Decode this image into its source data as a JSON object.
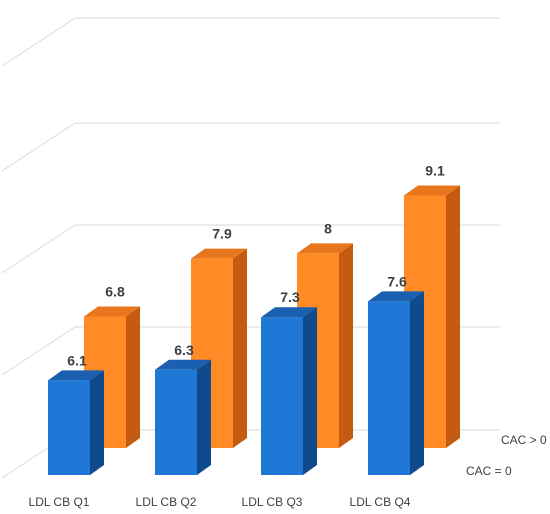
{
  "chart_data": {
    "type": "bar",
    "style": "3d-clustered-depth",
    "categories": [
      "LDL CB Q1",
      "LDL CB Q2",
      "LDL CB Q3",
      "LDL CB Q4"
    ],
    "series": [
      {
        "name": "CAC > 0",
        "values": [
          6.8,
          7.9,
          8,
          9.1
        ],
        "color": "#ff8a26",
        "side_color": "#c55a11",
        "top_color": "#e8761c"
      },
      {
        "name": "CAC = 0",
        "values": [
          6.1,
          6.3,
          7.3,
          7.6
        ],
        "color": "#1f77d6",
        "side_color": "#0f4a8c",
        "top_color": "#1a5fb0"
      }
    ],
    "data_labels": {
      "cac_gt_0": [
        "6.8",
        "7.9",
        "8",
        "9.1"
      ],
      "cac_eq_0": [
        "6.1",
        "6.3",
        "7.3",
        "7.6"
      ]
    },
    "grid": true,
    "gridline_color": "#d9d9d9",
    "title": "",
    "xlabel": "",
    "ylabel": ""
  }
}
